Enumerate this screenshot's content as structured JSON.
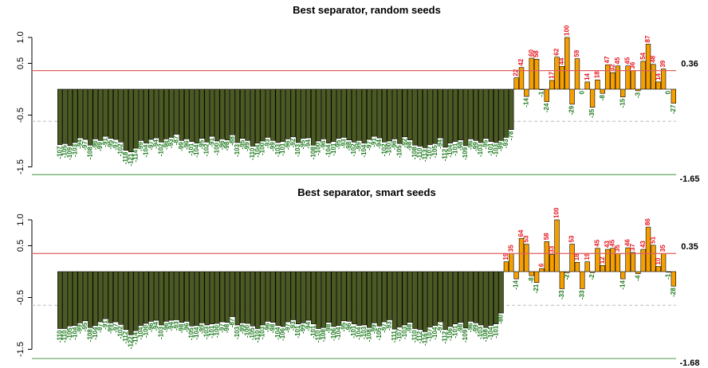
{
  "chart_data": [
    {
      "type": "bar",
      "title": "Best separator, random seeds",
      "ylim": [
        -1.7,
        1.2
      ],
      "yticks": [
        {
          "value": -1.5,
          "label": "-1.5"
        },
        {
          "value": -0.5,
          "label": "-0.5"
        },
        {
          "value": 0.5,
          "label": "0.5"
        },
        {
          "value": 1,
          "label": "1.0"
        }
      ],
      "hlines": [
        {
          "value": 0.36,
          "color": "#e06060"
        },
        {
          "value": -1.65,
          "color": "#60a860"
        }
      ],
      "dashed_line": -0.62,
      "label_colors": {
        "positive": "#e8101a",
        "negative": "#1f7a1f"
      },
      "series": [
        {
          "color": "#4b5a22",
          "values": [
            -1.07,
            -1.05,
            -1.09,
            -1.03,
            -0.94,
            -0.97,
            -1.08,
            -0.96,
            -0.99,
            -0.91,
            -0.95,
            -0.97,
            -1.02,
            -1.18,
            -1.21,
            -1.14,
            -0.99,
            -1.04,
            -0.97,
            -0.94,
            -1.02,
            -0.96,
            -0.93,
            -0.87,
            -0.99,
            -0.96,
            -1.01,
            -1.04,
            -0.95,
            -1.02,
            -0.91,
            -1.0,
            -0.96,
            -0.98,
            -0.88,
            -1.03,
            -0.95,
            -0.99,
            -1.1,
            -1.04,
            -1.0,
            -0.93,
            -0.99,
            -1.03,
            -1.01,
            -0.96,
            -0.92,
            -1.03,
            -0.95,
            -0.94,
            -1.08,
            -1.0,
            -0.96,
            -1.04,
            -1.01,
            -0.95,
            -0.93,
            -0.98,
            -1.02,
            -0.99,
            -1.04,
            -0.97,
            -0.91,
            -0.94,
            -1.02,
            -1.0,
            -0.96,
            -1.05,
            -0.92,
            -0.98,
            -1.08,
            -1.1,
            -1.13,
            -1.07,
            -1.05,
            -0.94,
            -1.12,
            -1.04,
            -1.01,
            -0.98,
            -1.09,
            -0.96,
            -0.99,
            -1.03,
            -0.95,
            -1.01,
            -1.03,
            -0.99,
            -0.93,
            -0.78
          ],
          "value_labels": [
            "-107",
            "-105",
            "-109",
            "-103",
            "-94",
            "-97",
            "-108",
            "-96",
            "-99",
            "-91",
            "-95",
            "-97",
            "-102",
            "-118",
            "-121",
            "-114",
            "-99",
            "-104",
            "-97",
            "-94",
            "-102",
            "-96",
            "-93",
            "-87",
            "-99",
            "-96",
            "-101",
            "-104",
            "-95",
            "-102",
            "-91",
            "-100",
            "-96",
            "-98",
            "-88",
            "-103",
            "-95",
            "-99",
            "-110",
            "-104",
            "-100",
            "-93",
            "-99",
            "-103",
            "-101",
            "-96",
            "-92",
            "-103",
            "-95",
            "-94",
            "-108",
            "-100",
            "-96",
            "-104",
            "-101",
            "-95",
            "-93",
            "-98",
            "-102",
            "-99",
            "-104",
            "-97",
            "-91",
            "-94",
            "-102",
            "-100",
            "-96",
            "-105",
            "-92",
            "-98",
            "-108",
            "-110",
            "-113",
            "-107",
            "-105",
            "-94",
            "-112",
            "-104",
            "-101",
            "-98",
            "-109",
            "-96",
            "-99",
            "-103",
            "-95",
            "-101",
            "-103",
            "-99",
            "-93",
            "-78"
          ]
        },
        {
          "color": "#f5a000",
          "values": [
            0.22,
            0.42,
            -0.14,
            0.6,
            0.58,
            -0.01,
            -0.24,
            0.17,
            0.62,
            0.44,
            1.0,
            -0.29,
            0.59,
            0,
            0.14,
            -0.35,
            0.18,
            -0.08,
            0.47,
            0.32,
            0.45,
            -0.15,
            0.45,
            0.36,
            -0.03,
            0.54,
            0.87,
            0.48,
            0.14,
            0.39,
            0,
            -0.27
          ],
          "value_labels": [
            "22",
            "42",
            "-14",
            "60",
            "58",
            "-1",
            "-24",
            "17",
            "62",
            "44",
            "100",
            "-29",
            "59",
            "0",
            "14",
            "-35",
            "18",
            "-8",
            "47",
            "32",
            "45",
            "-15",
            "45",
            "36",
            "-3",
            "54",
            "87",
            "48",
            "14",
            "39",
            "0",
            "-27"
          ]
        }
      ]
    },
    {
      "type": "bar",
      "title": "Best separator, smart seeds",
      "ylim": [
        -1.7,
        1.2
      ],
      "yticks": [
        {
          "value": -1.5,
          "label": "-1.5"
        },
        {
          "value": -0.5,
          "label": "-0.5"
        },
        {
          "value": 0.5,
          "label": "0.5"
        },
        {
          "value": 1,
          "label": "1.0"
        }
      ],
      "hlines": [
        {
          "value": 0.35,
          "color": "#e06060"
        },
        {
          "value": -1.68,
          "color": "#60a860"
        }
      ],
      "dashed_line": -0.65,
      "label_colors": {
        "positive": "#e8101a",
        "negative": "#1f7a1f"
      },
      "series": [
        {
          "color": "#4b5a22",
          "values": [
            -1.1,
            -1.1,
            -1.05,
            -1.04,
            -0.99,
            -0.95,
            -1.08,
            -1.04,
            -0.97,
            -0.91,
            -0.99,
            -0.97,
            -1.02,
            -1.12,
            -1.22,
            -1.14,
            -1.04,
            -1.0,
            -0.96,
            -0.94,
            -1.03,
            -0.96,
            -0.94,
            -0.93,
            -0.98,
            -0.96,
            -1.05,
            -1.04,
            -0.99,
            -1.03,
            -1.01,
            -1.0,
            -0.97,
            -0.98,
            -0.87,
            -1.03,
            -0.99,
            -1.0,
            -1.05,
            -1.1,
            -1.03,
            -0.96,
            -0.98,
            -1.04,
            -1.06,
            -0.97,
            -0.93,
            -1.01,
            -0.99,
            -0.94,
            -1.01,
            -1.1,
            -1.08,
            -0.98,
            -1.06,
            -1.04,
            -0.95,
            -0.96,
            -1.01,
            -1.04,
            -1.03,
            -1.08,
            -0.99,
            -1.05,
            -0.97,
            -0.93,
            -1.11,
            -1.07,
            -1.03,
            -0.98,
            -1.1,
            -1.12,
            -1.16,
            -1.07,
            -1.04,
            -0.97,
            -1.12,
            -1.06,
            -1.01,
            -0.98,
            -1.09,
            -0.96,
            -0.99,
            -1.03,
            -1.08,
            -1.04,
            -1.01,
            -0.8
          ],
          "value_labels": [
            "-110",
            "-110",
            "-105",
            "-104",
            "-99",
            "-95",
            "-108",
            "-104",
            "-97",
            "-91",
            "-99",
            "-97",
            "-102",
            "-112",
            "-122",
            "-114",
            "-104",
            "-100",
            "-96",
            "-94",
            "-103",
            "-96",
            "-94",
            "-93",
            "-98",
            "-96",
            "-105",
            "-104",
            "-99",
            "-103",
            "-101",
            "-100",
            "-97",
            "-98",
            "-87",
            "-103",
            "-99",
            "-100",
            "-105",
            "-110",
            "-103",
            "-96",
            "-98",
            "-104",
            "-106",
            "-97",
            "-93",
            "-101",
            "-99",
            "-94",
            "-101",
            "-110",
            "-108",
            "-98",
            "-106",
            "-104",
            "-95",
            "-96",
            "-101",
            "-104",
            "-103",
            "-108",
            "-99",
            "-105",
            "-97",
            "-93",
            "-111",
            "-107",
            "-103",
            "-98",
            "-110",
            "-112",
            "-116",
            "-107",
            "-104",
            "-97",
            "-112",
            "-106",
            "-101",
            "-98",
            "-109",
            "-96",
            "-99",
            "-103",
            "-108",
            "-104",
            "-101",
            "-80"
          ]
        },
        {
          "color": "#f5a000",
          "values": [
            0.19,
            0.35,
            -0.14,
            0.64,
            0.53,
            -0.08,
            -0.21,
            0.06,
            0.58,
            0.33,
            1.0,
            -0.33,
            -0.02,
            0.53,
            0.18,
            -0.33,
            0.19,
            -0.02,
            0.45,
            0.12,
            0.43,
            0.45,
            0.35,
            -0.14,
            0.46,
            0.37,
            -0.04,
            0.43,
            0.86,
            0.51,
            0.1,
            0.35,
            -0.01,
            -0.28
          ],
          "value_labels": [
            "19",
            "35",
            "-14",
            "64",
            "53",
            "-8",
            "-21",
            "6",
            "58",
            "33",
            "100",
            "-33",
            "-2",
            "53",
            "18",
            "-33",
            "19",
            "-2",
            "45",
            "12",
            "43",
            "45",
            "35",
            "-14",
            "46",
            "37",
            "-4",
            "43",
            "86",
            "51",
            "10",
            "35",
            "-1",
            "-28"
          ]
        }
      ]
    }
  ]
}
